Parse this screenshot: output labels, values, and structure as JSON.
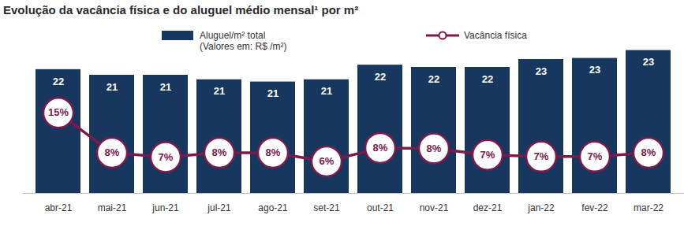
{
  "chart_data": {
    "type": "bar",
    "title": "Evolução da vacância física e do aluguel médio mensal¹ por m²",
    "categories": [
      "abr-21",
      "mai-21",
      "jun-21",
      "jul-21",
      "ago-21",
      "set-21",
      "out-21",
      "nov-21",
      "dez-21",
      "jan-22",
      "fev-22",
      "mar-22"
    ],
    "series": [
      {
        "name": "Aluguel/m² total\n(Valores em: R$ /m²)",
        "type": "bar",
        "color": "#17375e",
        "values": [
          21.7,
          21.2,
          21.2,
          20.8,
          20.6,
          20.8,
          22.1,
          21.9,
          21.9,
          22.6,
          22.7,
          23.4
        ],
        "value_labels": [
          "22",
          "21",
          "21",
          "21",
          "21",
          "21",
          "22",
          "22",
          "22",
          "23",
          "23",
          "23"
        ]
      },
      {
        "name": "Vacância física",
        "type": "line",
        "axis": "y2",
        "color": "#7b1a4b",
        "marker": "circle",
        "values": [
          14.9,
          7.5,
          6.7,
          7.5,
          7.5,
          5.9,
          8.4,
          8.3,
          7.1,
          6.8,
          6.8,
          7.5
        ],
        "value_labels": [
          "15%",
          "8%",
          "7%",
          "8%",
          "8%",
          "6%",
          "8%",
          "8%",
          "7%",
          "7%",
          "7%",
          "8%"
        ]
      }
    ],
    "ylim": [
      10.7,
      24
    ],
    "y2lim": [
      0,
      27.7
    ],
    "data_labels": true,
    "tick_labels": "x",
    "grid": false,
    "legend": "top"
  }
}
